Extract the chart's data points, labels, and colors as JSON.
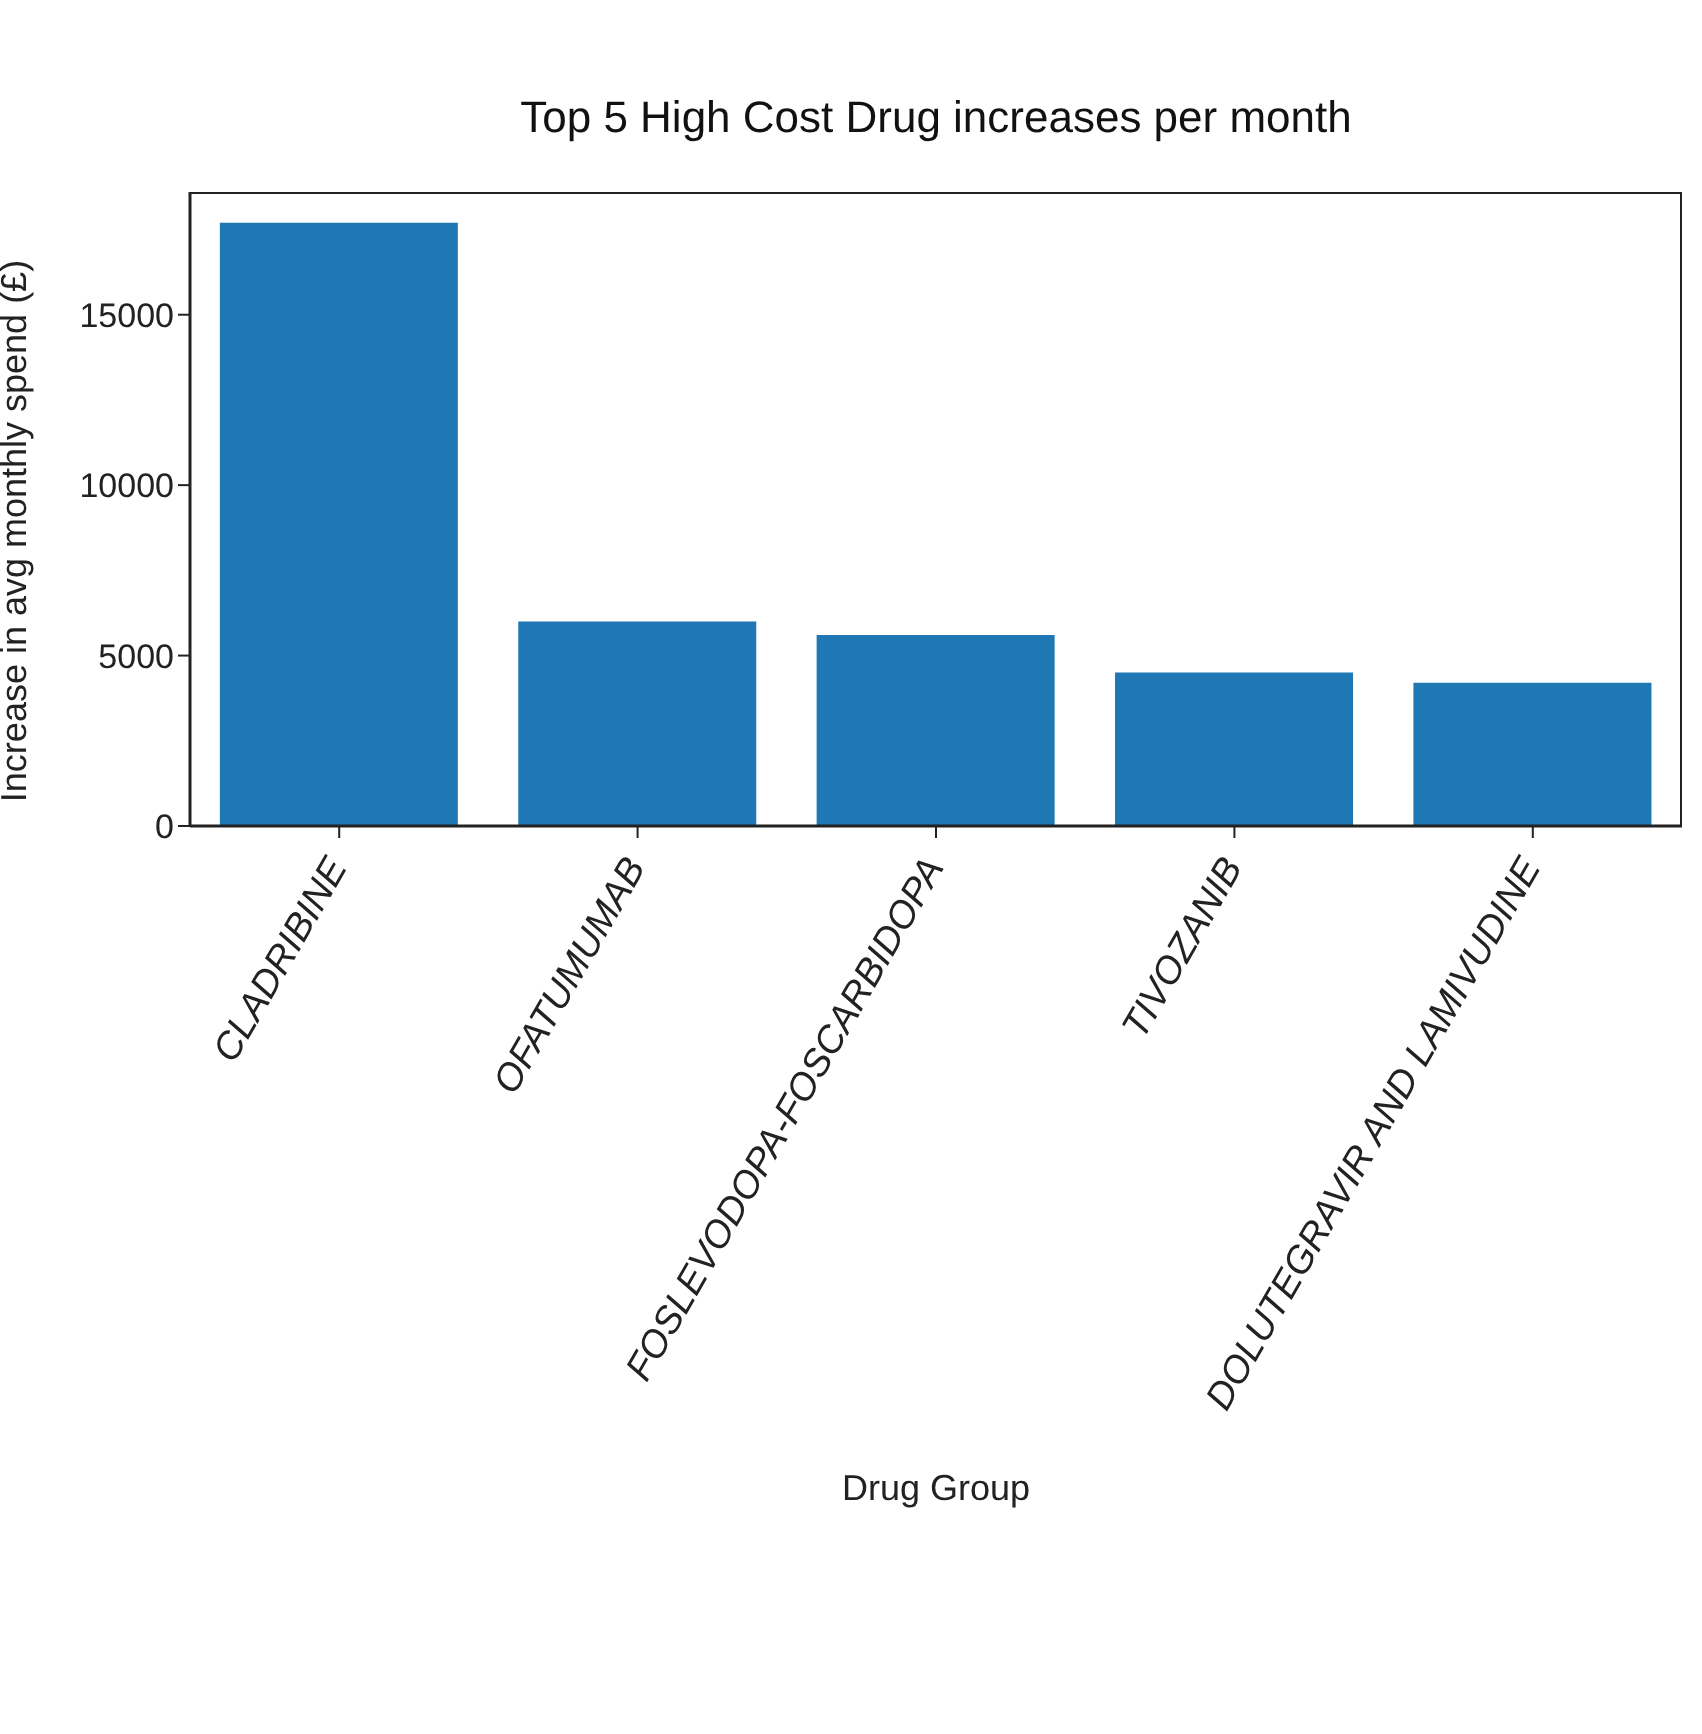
{
  "chart_data": {
    "type": "bar",
    "title": "Top 5 High Cost Drug increases per month",
    "xlabel": "Drug Group",
    "ylabel": "Increase in avg monthly spend (£)",
    "categories": [
      "CLADRIBINE",
      "OFATUMUMAB",
      "FOSLEVODOPA-FOSCARBIDOPA",
      "TIVOZANIB",
      "DOLUTEGRAVIR AND LAMIVUDINE"
    ],
    "values": [
      17700,
      6000,
      5600,
      4500,
      4200
    ],
    "color": "#1f77b4",
    "ylim": [
      0,
      18600
    ],
    "yticks": [
      0,
      5000,
      10000,
      15000
    ],
    "grid": false,
    "legend": false
  }
}
